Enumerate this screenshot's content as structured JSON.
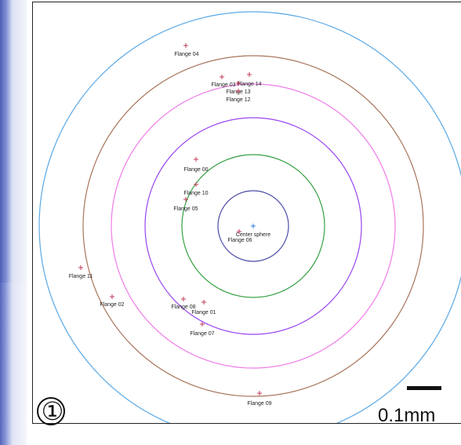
{
  "diagram": {
    "rings": [
      {
        "name": "outer",
        "color": "#5aa9e6"
      },
      {
        "name": "brown",
        "color": "#a9745a"
      },
      {
        "name": "pink",
        "color": "#f07ce8"
      },
      {
        "name": "purple",
        "color": "#9a45f0"
      },
      {
        "name": "green",
        "color": "#36a143"
      },
      {
        "name": "inner",
        "color": "#4a4aa8"
      }
    ],
    "markers": [
      {
        "label": "Flange 04",
        "color": "#c0395a"
      },
      {
        "label": "Flange 03",
        "color": "#c0395a"
      },
      {
        "label": "Flange 14",
        "color": "#c0395a"
      },
      {
        "label": "Flange 13",
        "color": "#c0395a"
      },
      {
        "label": "Flange 12",
        "color": "#c0395a"
      },
      {
        "label": "Flange 00",
        "color": "#c0395a"
      },
      {
        "label": "Flange 10",
        "color": "#c0395a"
      },
      {
        "label": "Flange 05",
        "color": "#c0395a"
      },
      {
        "label": "Center sphere",
        "color": "#2f7be0"
      },
      {
        "label": "Flange 06",
        "color": "#c0395a"
      },
      {
        "label": "Flange 11",
        "color": "#c0395a"
      },
      {
        "label": "Flange 02",
        "color": "#c0395a"
      },
      {
        "label": "Flange 08",
        "color": "#c0395a"
      },
      {
        "label": "Flange 01",
        "color": "#c0395a"
      },
      {
        "label": "Flange 07",
        "color": "#c0395a"
      },
      {
        "label": "Flange 09",
        "color": "#c0395a"
      }
    ],
    "panel_number": "①",
    "scale_bar_label": "0.1mm"
  }
}
